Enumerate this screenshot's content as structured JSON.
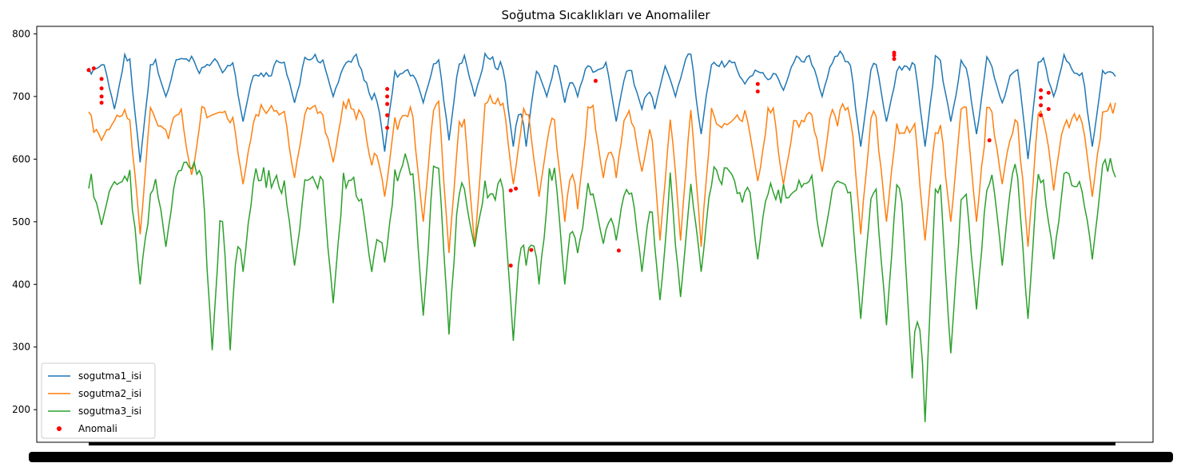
{
  "chart_data": {
    "type": "line",
    "title": "Soğutma Sıcaklıkları ve Anomaliler",
    "xlabel": "",
    "ylabel": "",
    "ylim": [
      148,
      812
    ],
    "yticks": [
      200,
      300,
      400,
      500,
      600,
      700,
      800
    ],
    "n_points": 400,
    "x_tick_labels_overlapping": true,
    "legend_position": "lower left",
    "grid": false,
    "series": [
      {
        "name": "sogutma1_isi",
        "color": "#1f77b4",
        "baseline": 748,
        "noise": 14,
        "dips": [
          [
            10,
            680
          ],
          [
            20,
            595
          ],
          [
            30,
            700
          ],
          [
            60,
            660
          ],
          [
            80,
            690
          ],
          [
            95,
            700
          ],
          [
            110,
            695
          ],
          [
            115,
            612
          ],
          [
            130,
            690
          ],
          [
            140,
            630
          ],
          [
            150,
            700
          ],
          [
            165,
            620
          ],
          [
            170,
            620
          ],
          [
            178,
            700
          ],
          [
            185,
            690
          ],
          [
            190,
            700
          ],
          [
            205,
            660
          ],
          [
            215,
            680
          ],
          [
            220,
            680
          ],
          [
            228,
            700
          ],
          [
            238,
            640
          ],
          [
            255,
            720
          ],
          [
            270,
            710
          ],
          [
            285,
            700
          ],
          [
            300,
            620
          ],
          [
            310,
            660
          ],
          [
            325,
            620
          ],
          [
            335,
            660
          ],
          [
            345,
            640
          ],
          [
            355,
            690
          ],
          [
            365,
            600
          ],
          [
            375,
            700
          ],
          [
            390,
            620
          ]
        ],
        "segments": [
          [
            400,
            530,
            700
          ],
          [
            1475,
            560,
            680
          ],
          [
            1640,
            570,
            700
          ],
          [
            1870,
            720,
            700
          ]
        ],
        "values": []
      },
      {
        "name": "sogutma2_isi",
        "color": "#ff7f0e",
        "baseline": 670,
        "noise": 22,
        "dips": [
          [
            5,
            630
          ],
          [
            20,
            480
          ],
          [
            40,
            575
          ],
          [
            60,
            560
          ],
          [
            80,
            570
          ],
          [
            95,
            595
          ],
          [
            110,
            590
          ],
          [
            115,
            540
          ],
          [
            130,
            500
          ],
          [
            140,
            450
          ],
          [
            150,
            460
          ],
          [
            165,
            560
          ],
          [
            175,
            540
          ],
          [
            185,
            500
          ],
          [
            190,
            520
          ],
          [
            200,
            570
          ],
          [
            205,
            570
          ],
          [
            215,
            580
          ],
          [
            222,
            470
          ],
          [
            230,
            470
          ],
          [
            238,
            460
          ],
          [
            260,
            565
          ],
          [
            270,
            560
          ],
          [
            285,
            580
          ],
          [
            300,
            480
          ],
          [
            310,
            500
          ],
          [
            325,
            470
          ],
          [
            335,
            500
          ],
          [
            345,
            500
          ],
          [
            355,
            560
          ],
          [
            365,
            460
          ],
          [
            375,
            550
          ],
          [
            390,
            540
          ]
        ],
        "segments": [],
        "values": []
      },
      {
        "name": "sogutma3_isi",
        "color": "#2ca02c",
        "baseline": 560,
        "noise": 30,
        "dips": [
          [
            5,
            495
          ],
          [
            20,
            400
          ],
          [
            30,
            460
          ],
          [
            48,
            295
          ],
          [
            55,
            295
          ],
          [
            60,
            420
          ],
          [
            80,
            430
          ],
          [
            95,
            370
          ],
          [
            110,
            420
          ],
          [
            115,
            435
          ],
          [
            130,
            350
          ],
          [
            140,
            320
          ],
          [
            150,
            460
          ],
          [
            165,
            310
          ],
          [
            170,
            430
          ],
          [
            175,
            400
          ],
          [
            185,
            400
          ],
          [
            190,
            450
          ],
          [
            200,
            465
          ],
          [
            205,
            470
          ],
          [
            215,
            420
          ],
          [
            222,
            375
          ],
          [
            230,
            380
          ],
          [
            238,
            420
          ],
          [
            260,
            440
          ],
          [
            285,
            460
          ],
          [
            300,
            345
          ],
          [
            310,
            335
          ],
          [
            320,
            250
          ],
          [
            325,
            180
          ],
          [
            335,
            290
          ],
          [
            345,
            360
          ],
          [
            355,
            430
          ],
          [
            365,
            345
          ],
          [
            375,
            440
          ],
          [
            390,
            440
          ]
        ],
        "segments": [],
        "values": []
      }
    ],
    "anomalies": {
      "name": "Anomali",
      "color": "#ff0000",
      "points": [
        [
          0,
          742
        ],
        [
          2,
          745
        ],
        [
          5,
          728
        ],
        [
          5,
          713
        ],
        [
          5,
          700
        ],
        [
          5,
          690
        ],
        [
          116,
          712
        ],
        [
          116,
          700
        ],
        [
          116,
          688
        ],
        [
          116,
          670
        ],
        [
          116,
          650
        ],
        [
          164,
          550
        ],
        [
          172,
          455
        ],
        [
          166,
          553
        ],
        [
          164,
          430
        ],
        [
          197,
          725
        ],
        [
          206,
          454
        ],
        [
          260,
          720
        ],
        [
          260,
          708
        ],
        [
          313,
          766
        ],
        [
          313,
          760
        ],
        [
          313,
          770
        ],
        [
          350,
          630
        ],
        [
          370,
          710
        ],
        [
          370,
          698
        ],
        [
          370,
          686
        ],
        [
          370,
          670
        ],
        [
          373,
          706
        ],
        [
          373,
          680
        ]
      ]
    }
  }
}
